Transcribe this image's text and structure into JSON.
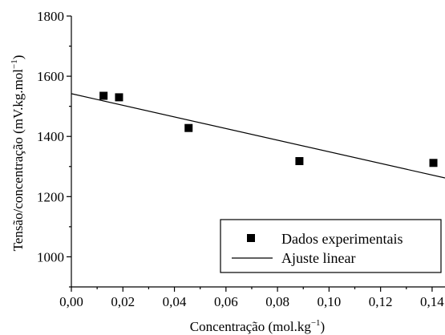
{
  "chart_data": {
    "type": "scatter",
    "xlabel": "Concentração (mol.kg",
    "xlabel_unit_sup": "−1",
    "xlabel_suffix": ")",
    "ylabel": "Tensão/concentração (mV.kg.mol",
    "ylabel_unit_sup": "−1",
    "ylabel_suffix": ")",
    "xlim": [
      0,
      0.145
    ],
    "ylim": [
      900,
      1800
    ],
    "x_ticks": [
      0,
      0.02,
      0.04,
      0.06,
      0.08,
      0.1,
      0.12,
      0.14
    ],
    "x_tick_labels": [
      "0,00",
      "0,02",
      "0,04",
      "0,06",
      "0,08",
      "0,10",
      "0,12",
      "0,14"
    ],
    "y_ticks": [
      1000,
      1200,
      1400,
      1600,
      1800
    ],
    "y_tick_labels": [
      "1000",
      "1200",
      "1400",
      "1600",
      "1800"
    ],
    "y_minor_ticks": [
      900,
      1100,
      1300,
      1500,
      1700
    ],
    "x_minor_ticks": [
      0.01,
      0.03,
      0.05,
      0.07,
      0.09,
      0.11,
      0.13
    ],
    "grid": false,
    "legend_placement": "bottom-right",
    "series": [
      {
        "name": "Dados experimentais",
        "kind": "points",
        "marker": "square",
        "color": "#000000",
        "x": [
          0.0125,
          0.0185,
          0.0455,
          0.0885,
          0.1405
        ],
        "y": [
          1535,
          1530,
          1428,
          1318,
          1312
        ]
      },
      {
        "name": "Ajuste linear",
        "kind": "line",
        "color": "#000000",
        "x": [
          0,
          0.145
        ],
        "y": [
          1542,
          1262
        ]
      }
    ]
  }
}
